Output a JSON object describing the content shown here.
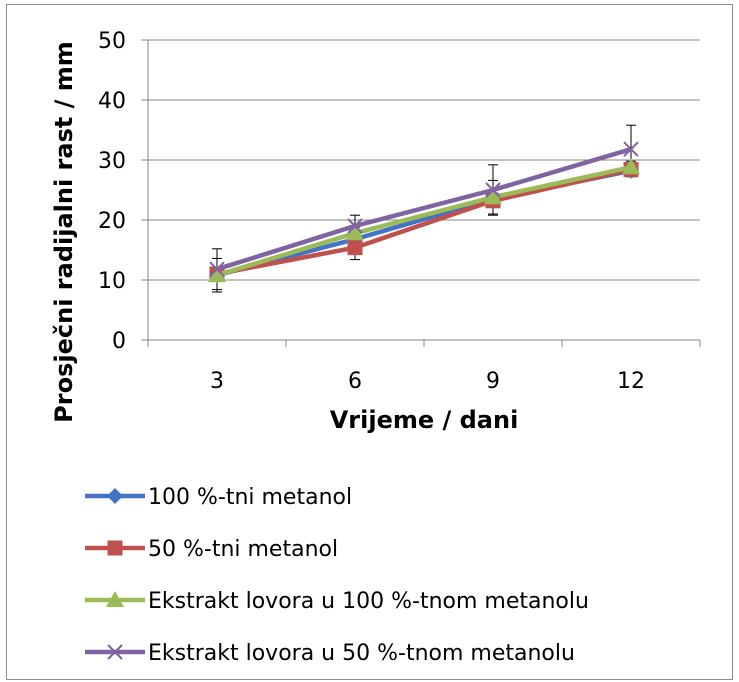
{
  "chart_data": {
    "type": "line",
    "title": "",
    "xlabel": "Vrijeme / dani",
    "ylabel": "Prosječni radijalni rast / mm",
    "categories": [
      "3",
      "6",
      "9",
      "12"
    ],
    "ylim": [
      0,
      50
    ],
    "yticks": [
      0,
      10,
      20,
      30,
      40,
      50
    ],
    "grid": true,
    "legend_position": "bottom",
    "series": [
      {
        "name": "100 %-tni metanol",
        "color": "#4472C4",
        "marker": "diamond",
        "values": [
          10.8,
          16.8,
          23.5,
          28.2
        ],
        "error": [
          0.6,
          1.0,
          1.0,
          1.0
        ]
      },
      {
        "name": "50 %-tni metanol",
        "color": "#C0504D",
        "marker": "square",
        "values": [
          11.0,
          15.4,
          23.2,
          28.4
        ],
        "error": [
          0.6,
          2.0,
          1.0,
          1.0
        ]
      },
      {
        "name": "Ekstrakt lovora u 100 %-tnom metanolu",
        "color": "#9BBB59",
        "marker": "triangle",
        "values": [
          10.8,
          17.8,
          23.8,
          28.8
        ],
        "error": [
          2.8,
          1.0,
          2.8,
          1.0
        ]
      },
      {
        "name": "Ekstrakt lovora u 50 %-tnom metanolu",
        "color": "#8064A2",
        "marker": "x",
        "values": [
          11.8,
          19.0,
          25.0,
          31.8
        ],
        "error": [
          3.4,
          1.8,
          4.2,
          4.0
        ]
      }
    ]
  }
}
